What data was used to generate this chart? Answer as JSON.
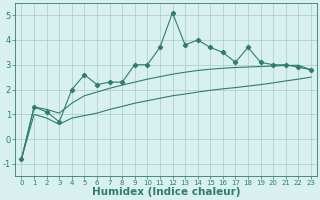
{
  "title": "",
  "xlabel": "Humidex (Indice chaleur)",
  "x_values": [
    0,
    1,
    2,
    3,
    4,
    5,
    6,
    7,
    8,
    9,
    10,
    11,
    12,
    13,
    14,
    15,
    16,
    17,
    18,
    19,
    20,
    21,
    22,
    23
  ],
  "main_line": [
    -0.8,
    1.3,
    1.1,
    0.7,
    2.0,
    2.6,
    2.2,
    2.3,
    2.3,
    3.0,
    3.0,
    3.7,
    5.1,
    3.8,
    4.0,
    3.7,
    3.5,
    3.1,
    3.7,
    3.1,
    3.0,
    3.0,
    2.9,
    2.8
  ],
  "upper_line": [
    -0.8,
    1.3,
    1.2,
    1.05,
    1.45,
    1.75,
    1.9,
    2.05,
    2.18,
    2.3,
    2.42,
    2.52,
    2.62,
    2.7,
    2.77,
    2.82,
    2.86,
    2.89,
    2.91,
    2.93,
    2.95,
    2.97,
    2.98,
    2.8
  ],
  "lower_line": [
    -0.8,
    1.0,
    0.85,
    0.6,
    0.85,
    0.95,
    1.05,
    1.2,
    1.32,
    1.45,
    1.55,
    1.65,
    1.75,
    1.82,
    1.9,
    1.97,
    2.03,
    2.08,
    2.14,
    2.2,
    2.27,
    2.35,
    2.42,
    2.5
  ],
  "line_color": "#2e7d6e",
  "bg_color": "#d8f0ee",
  "grid_color": "#a8ccca",
  "ylim": [
    -1.5,
    5.5
  ],
  "xlim": [
    -0.5,
    23.5
  ],
  "yticks": [
    -1,
    0,
    1,
    2,
    3,
    4,
    5
  ],
  "xticks": [
    0,
    1,
    2,
    3,
    4,
    5,
    6,
    7,
    8,
    9,
    10,
    11,
    12,
    13,
    14,
    15,
    16,
    17,
    18,
    19,
    20,
    21,
    22,
    23
  ],
  "marker": "D",
  "markersize": 2.2,
  "linewidth": 0.8,
  "xlabel_fontsize": 7.5,
  "xtick_fontsize": 5.0,
  "ytick_fontsize": 6.0
}
